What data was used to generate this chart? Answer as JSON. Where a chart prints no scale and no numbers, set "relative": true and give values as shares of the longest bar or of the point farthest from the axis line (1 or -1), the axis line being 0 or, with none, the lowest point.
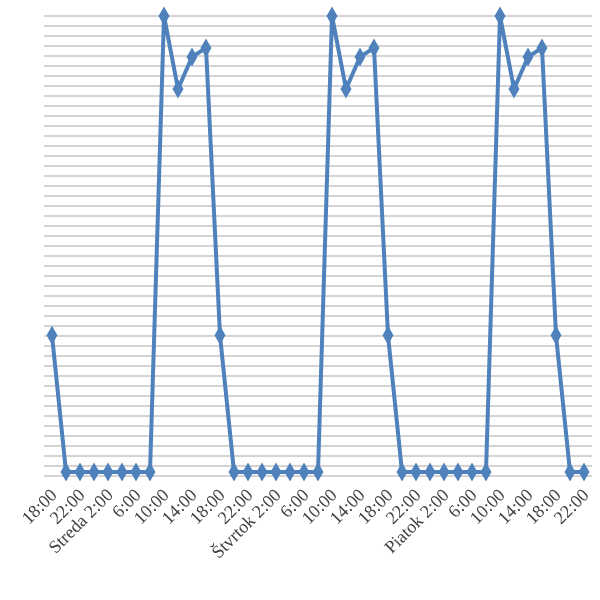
{
  "chart_data": {
    "type": "line",
    "relative": true,
    "grid": "y",
    "marker": "diamond",
    "line_style": "solid",
    "categories": [
      "18:00",
      null,
      "22:00",
      null,
      "Streda 2:00",
      null,
      "6:00",
      null,
      "10:00",
      null,
      "14:00",
      null,
      "18:00",
      null,
      "22:00",
      null,
      "Štvrtok 2:00",
      null,
      "6:00",
      null,
      "10:00",
      null,
      "14:00",
      null,
      "18:00",
      null,
      "22:00",
      null,
      "Piatok 2:00",
      null,
      "6:00",
      null,
      "10:00",
      null,
      "14:00",
      null,
      "18:00",
      null,
      "22:00"
    ],
    "series": [
      {
        "color": "#4f81bd",
        "values": [
          0.3,
          0,
          0,
          0,
          0,
          0,
          0,
          0,
          1,
          0.84,
          0.91,
          0.93,
          0.3,
          0,
          0,
          0,
          0,
          0,
          0,
          0,
          1,
          0.84,
          0.91,
          0.93,
          0.3,
          0,
          0,
          0,
          0,
          0,
          0,
          0,
          1,
          0.84,
          0.91,
          0.93,
          0.3,
          0,
          0
        ]
      }
    ]
  }
}
